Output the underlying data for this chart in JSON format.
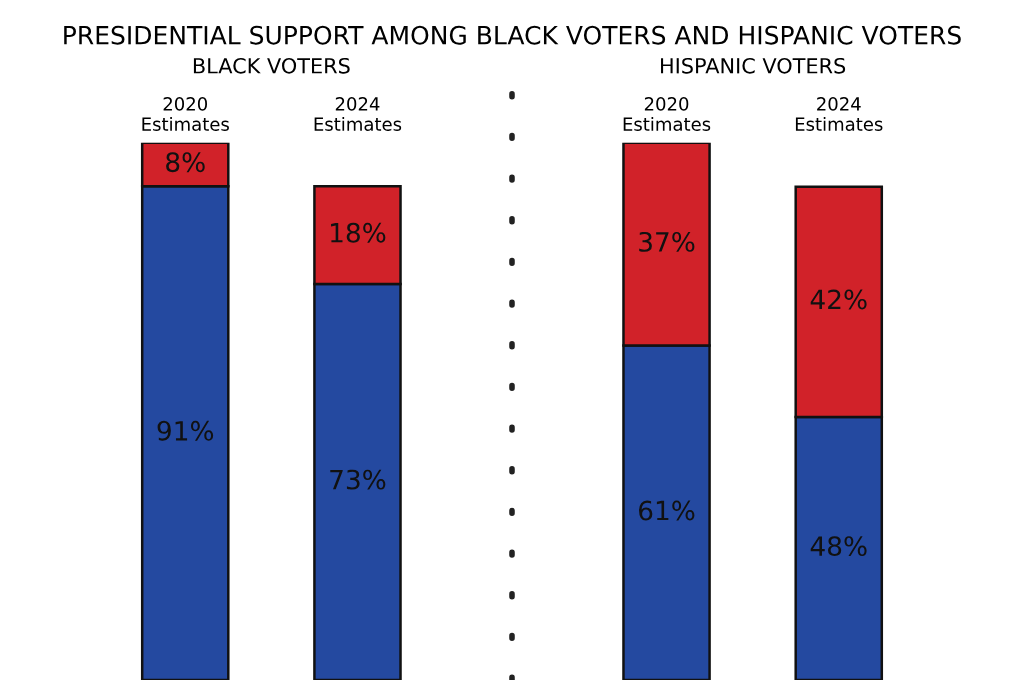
{
  "chart_data": [
    {
      "type": "bar",
      "title": "PRESIDENTIAL SUPPORT AMONG BLACK VOTERS AND HISPANIC VOTERS",
      "subtitle": "BLACK VOTERS",
      "categories": [
        "2020\nEstimates",
        "2024\nEstimates"
      ],
      "stacked": true,
      "tick_labels": "x",
      "series": [
        {
          "color": "#2449a0",
          "values": [
            91,
            73
          ],
          "value_labels": [
            "91%",
            "73%"
          ]
        },
        {
          "color": "#d12229",
          "values": [
            8,
            18
          ],
          "value_labels": [
            "8%",
            "18%"
          ]
        }
      ]
    },
    {
      "type": "bar",
      "subtitle": "HISPANIC VOTERS",
      "categories": [
        "2020\nEstimates",
        "2024\nEstimates"
      ],
      "stacked": true,
      "tick_labels": "x",
      "series": [
        {
          "color": "#2449a0",
          "values": [
            61,
            48
          ],
          "value_labels": [
            "61%",
            "48%"
          ]
        },
        {
          "color": "#d12229",
          "values": [
            37,
            42
          ],
          "value_labels": [
            "37%",
            "42%"
          ]
        }
      ]
    }
  ]
}
